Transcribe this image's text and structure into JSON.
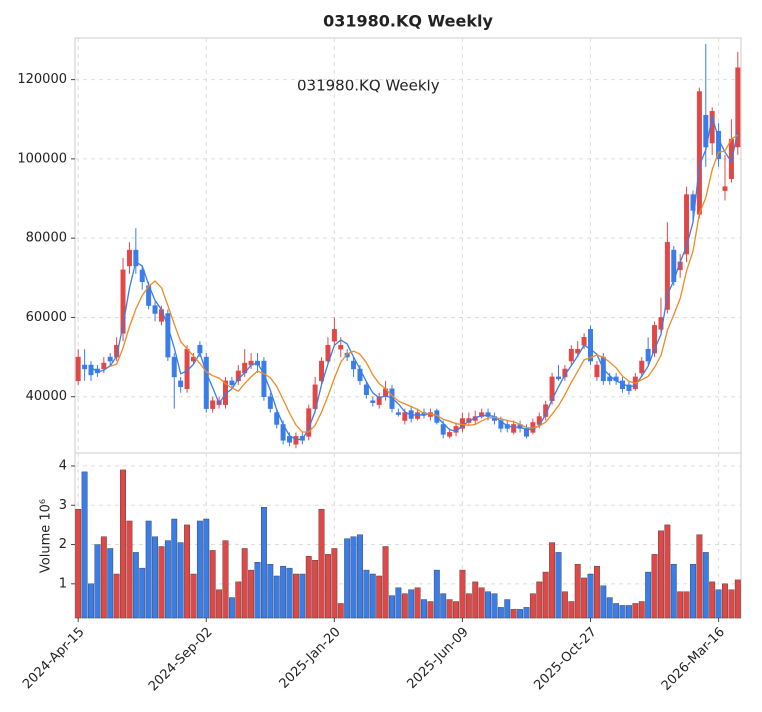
{
  "chart_data": [
    {
      "type": "candlestick",
      "title": "031980.KQ  Weekly",
      "annotation": "031980.KQ  Weekly",
      "up_color": "#e04848",
      "down_color": "#3a7de8",
      "grid": true,
      "ylim": [
        25800,
        130500
      ],
      "yticks": [
        40000,
        60000,
        80000,
        100000,
        120000
      ],
      "open": [
        44000,
        48000,
        48000,
        47000,
        47000,
        50000,
        50000,
        56000,
        73000,
        77000,
        72000,
        68000,
        63000,
        59000,
        61000,
        50000,
        44000,
        42000,
        49000,
        53000,
        50000,
        37000,
        38000,
        38000,
        44000,
        44000,
        46000,
        48000,
        49000,
        49000,
        40000,
        36000,
        33000,
        30000,
        28000,
        30000,
        30000,
        37000,
        44000,
        49000,
        54000,
        52000,
        51000,
        49000,
        47000,
        43000,
        39000,
        38000,
        40000,
        42000,
        36000,
        34000,
        36500,
        34500,
        36000,
        35000,
        36500,
        33000,
        30000,
        31000,
        32000,
        33500,
        34000,
        35000,
        36000,
        35000,
        34000,
        33000,
        31000,
        33000,
        32000,
        31000,
        33000,
        35000,
        39000,
        45000,
        45000,
        49000,
        51000,
        53000,
        57000,
        45000,
        50000,
        45000,
        45000,
        44000,
        43000,
        42000,
        46000,
        52000,
        51000,
        57000,
        62000,
        77000,
        72000,
        76000,
        91000,
        86000,
        111000,
        104000,
        107000,
        92000,
        95000,
        103000
      ],
      "high": [
        52000,
        52000,
        49000,
        48000,
        50000,
        51000,
        55000,
        75000,
        79000,
        82500,
        73000,
        69000,
        64000,
        63000,
        62000,
        51000,
        45000,
        53000,
        51000,
        54000,
        51000,
        40000,
        40000,
        45000,
        45000,
        48000,
        52000,
        51000,
        51000,
        50000,
        41000,
        37000,
        34000,
        31000,
        31000,
        31000,
        38000,
        45000,
        50000,
        55000,
        60000,
        55000,
        52000,
        50000,
        48000,
        44000,
        40000,
        41000,
        44000,
        43000,
        37000,
        37000,
        37500,
        37000,
        37000,
        37000,
        37000,
        34000,
        32000,
        33500,
        36000,
        36000,
        36500,
        37000,
        37000,
        36000,
        35000,
        34000,
        34000,
        34000,
        33000,
        34500,
        36000,
        39000,
        46000,
        48000,
        48000,
        53000,
        54000,
        56000,
        58000,
        49000,
        51000,
        46000,
        46000,
        45000,
        44000,
        46000,
        50000,
        55000,
        59000,
        65000,
        84000,
        78000,
        76000,
        93000,
        92000,
        118000,
        129000,
        113000,
        109000,
        101000,
        110000,
        127000
      ],
      "low": [
        43000,
        44000,
        44000,
        45000,
        46000,
        48000,
        49000,
        54000,
        71000,
        71000,
        67000,
        62000,
        59000,
        58000,
        49000,
        37000,
        41000,
        41000,
        48000,
        50000,
        36000,
        36000,
        37000,
        37000,
        42000,
        43000,
        45000,
        47000,
        46000,
        39000,
        36000,
        32000,
        28000,
        27500,
        27000,
        28000,
        29000,
        36000,
        43000,
        48000,
        53000,
        50000,
        49000,
        45000,
        43000,
        39500,
        37500,
        37000,
        39000,
        36000,
        35000,
        33000,
        33500,
        34000,
        34500,
        34000,
        33000,
        29500,
        29500,
        30000,
        31000,
        33000,
        33000,
        34500,
        34000,
        33000,
        31000,
        31000,
        30500,
        31000,
        29500,
        30500,
        32000,
        34000,
        38000,
        44000,
        44000,
        48000,
        50000,
        52000,
        48000,
        44000,
        43000,
        43000,
        43000,
        41000,
        40500,
        41500,
        45000,
        48000,
        50000,
        56000,
        61000,
        68000,
        70000,
        74000,
        84000,
        85000,
        98000,
        101000,
        98000,
        89500,
        94000,
        101000
      ],
      "close": [
        50000,
        47000,
        45500,
        46000,
        48500,
        49000,
        53000,
        72000,
        77000,
        73000,
        69000,
        63000,
        61000,
        62000,
        50000,
        45000,
        42500,
        52000,
        50000,
        51000,
        37000,
        39000,
        39000,
        44000,
        43000,
        46500,
        48500,
        49000,
        48000,
        40000,
        37000,
        33000,
        29000,
        28500,
        30000,
        29000,
        37000,
        43000,
        49000,
        53000,
        57000,
        53000,
        50000,
        47000,
        44000,
        40500,
        38500,
        40000,
        42000,
        37000,
        35500,
        36000,
        34500,
        36000,
        35500,
        36000,
        33500,
        30500,
        31000,
        32500,
        34500,
        34500,
        35000,
        36000,
        35000,
        34000,
        32000,
        32000,
        33000,
        32000,
        30000,
        33500,
        35000,
        38000,
        45000,
        44500,
        47000,
        52000,
        52000,
        55000,
        49000,
        48000,
        44000,
        44000,
        44000,
        42000,
        41500,
        45000,
        49000,
        49000,
        58000,
        60000,
        79000,
        69000,
        74000,
        91000,
        87000,
        117000,
        103000,
        112000,
        100000,
        93000,
        105000,
        123000
      ],
      "lines": [
        {
          "color": "#3a7de8",
          "values": [
            null,
            null,
            47500,
            46200,
            46700,
            47800,
            50200,
            58000,
            67300,
            74000,
            73000,
            68300,
            64300,
            62000,
            57700,
            52300,
            45800,
            46500,
            48200,
            51000,
            46000,
            42300,
            38300,
            40700,
            42000,
            44500,
            46000,
            48000,
            48500,
            45700,
            41700,
            36700,
            33000,
            30200,
            29200,
            29200,
            32000,
            36300,
            43000,
            48300,
            53000,
            54300,
            53300,
            50000,
            47000,
            43800,
            41000,
            39700,
            40200,
            39700,
            38200,
            36200,
            35300,
            35500,
            35300,
            35800,
            35000,
            33300,
            31700,
            31300,
            32700,
            33800,
            34700,
            35200,
            35300,
            35000,
            33700,
            32700,
            32300,
            32300,
            31700,
            31800,
            32800,
            35500,
            39300,
            42500,
            45500,
            47800,
            50300,
            53000,
            52000,
            50700,
            47000,
            45300,
            44000,
            43300,
            42500,
            42800,
            45200,
            47700,
            52000,
            55700,
            65700,
            69300,
            74000,
            78000,
            84000,
            98300,
            102300,
            110700,
            105000,
            101700,
            99300,
            107000
          ]
        },
        {
          "color": "#f08a24",
          "values": [
            null,
            null,
            null,
            null,
            null,
            47700,
            48200,
            52300,
            57600,
            62100,
            65500,
            67800,
            69200,
            67500,
            63000,
            58300,
            53900,
            52100,
            50300,
            48400,
            46300,
            45300,
            44700,
            43300,
            42200,
            41400,
            43300,
            45000,
            46500,
            45800,
            44800,
            42600,
            39300,
            35900,
            32900,
            31100,
            31100,
            32800,
            36100,
            40200,
            44700,
            48700,
            50800,
            51500,
            50700,
            48600,
            45500,
            43300,
            42000,
            40300,
            38900,
            38200,
            37500,
            36800,
            35800,
            35600,
            35300,
            34300,
            33800,
            33200,
            33000,
            32800,
            33000,
            33900,
            34600,
            34800,
            34400,
            34000,
            33700,
            33000,
            32200,
            32100,
            32600,
            33600,
            35600,
            37700,
            40500,
            43600,
            46400,
            49300,
            49900,
            50500,
            50000,
            48700,
            47300,
            45200,
            43900,
            43400,
            44300,
            45100,
            47400,
            50400,
            56700,
            60700,
            64800,
            71800,
            76700,
            86200,
            90200,
            97300,
            101700,
            102000,
            105000,
            106000
          ]
        }
      ]
    },
    {
      "type": "bar",
      "ylabel": "Volume  10⁶",
      "grid": true,
      "ylim": [
        0.13,
        4.33
      ],
      "yticks": [
        1,
        2,
        3,
        4
      ],
      "categories": [
        "2024-Apr-15",
        null,
        null,
        null,
        null,
        null,
        null,
        null,
        null,
        null,
        null,
        null,
        null,
        null,
        null,
        null,
        null,
        null,
        null,
        null,
        "2024-Sep-02",
        null,
        null,
        null,
        null,
        null,
        null,
        null,
        null,
        null,
        null,
        null,
        null,
        null,
        null,
        null,
        null,
        null,
        null,
        null,
        "2025-Jan-20",
        null,
        null,
        null,
        null,
        null,
        null,
        null,
        null,
        null,
        null,
        null,
        null,
        null,
        null,
        null,
        null,
        null,
        null,
        null,
        "2025-Jun-09",
        null,
        null,
        null,
        null,
        null,
        null,
        null,
        null,
        null,
        null,
        null,
        null,
        null,
        null,
        null,
        null,
        null,
        null,
        null,
        "2025-Oct-27",
        null,
        null,
        null,
        null,
        null,
        null,
        null,
        null,
        null,
        null,
        null,
        null,
        null,
        null,
        null,
        null,
        null,
        null,
        null,
        "2026-Mar-16",
        null,
        null,
        null
      ],
      "values": [
        2.9,
        3.85,
        1.0,
        2.0,
        2.2,
        1.9,
        1.25,
        3.9,
        2.6,
        1.8,
        1.4,
        2.6,
        2.2,
        1.95,
        2.1,
        2.65,
        2.05,
        2.5,
        1.25,
        2.6,
        2.65,
        1.85,
        0.85,
        2.1,
        0.65,
        1.05,
        1.9,
        1.35,
        1.55,
        2.95,
        1.5,
        1.2,
        1.45,
        1.4,
        1.25,
        1.25,
        1.7,
        1.6,
        2.9,
        1.75,
        1.9,
        0.5,
        2.15,
        2.2,
        2.25,
        1.35,
        1.25,
        1.2,
        1.95,
        0.7,
        0.9,
        0.75,
        0.85,
        0.9,
        0.6,
        0.55,
        1.35,
        0.75,
        0.6,
        0.55,
        1.35,
        0.75,
        1.05,
        0.9,
        0.8,
        0.75,
        0.4,
        0.6,
        0.35,
        0.35,
        0.4,
        0.75,
        1.05,
        1.3,
        2.05,
        1.8,
        0.8,
        0.55,
        1.5,
        1.15,
        1.25,
        1.45,
        0.95,
        0.65,
        0.5,
        0.45,
        0.45,
        0.5,
        0.55,
        1.3,
        1.75,
        2.35,
        2.5,
        1.5,
        0.8,
        0.8,
        1.5,
        2.25,
        1.8,
        1.05,
        0.85,
        1.0,
        0.85,
        1.1
      ]
    }
  ]
}
